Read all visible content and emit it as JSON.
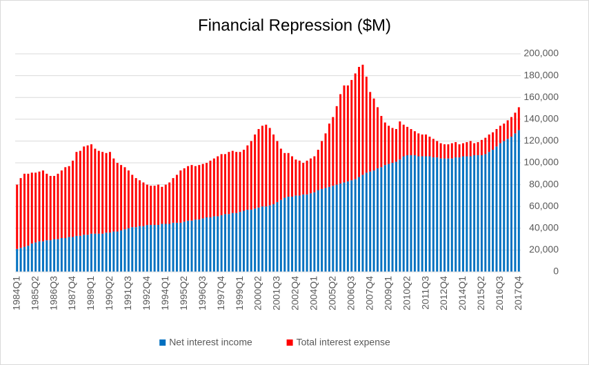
{
  "chart_data": {
    "type": "stacked_bar",
    "title": "Financial Repression ($M)",
    "categories": [
      "1984Q1",
      null,
      null,
      null,
      null,
      "1985Q2",
      null,
      null,
      null,
      null,
      "1986Q3",
      null,
      null,
      null,
      null,
      "1987Q4",
      null,
      null,
      null,
      null,
      "1989Q1",
      null,
      null,
      null,
      null,
      "1990Q2",
      null,
      null,
      null,
      null,
      "1991Q3",
      null,
      null,
      null,
      null,
      "1992Q4",
      null,
      null,
      null,
      null,
      "1994Q1",
      null,
      null,
      null,
      null,
      "1995Q2",
      null,
      null,
      null,
      null,
      "1996Q3",
      null,
      null,
      null,
      null,
      "1997Q4",
      null,
      null,
      null,
      null,
      "1999Q1",
      null,
      null,
      null,
      null,
      "2000Q2",
      null,
      null,
      null,
      null,
      "2001Q3",
      null,
      null,
      null,
      null,
      "2002Q4",
      null,
      null,
      null,
      null,
      "2004Q1",
      null,
      null,
      null,
      null,
      "2005Q2",
      null,
      null,
      null,
      null,
      "2006Q3",
      null,
      null,
      null,
      null,
      "2007Q4",
      null,
      null,
      null,
      null,
      "2009Q1",
      null,
      null,
      null,
      null,
      "2010Q2",
      null,
      null,
      null,
      null,
      "2011Q3",
      null,
      null,
      null,
      null,
      "2012Q4",
      null,
      null,
      null,
      null,
      "2014Q1",
      null,
      null,
      null,
      null,
      "2015Q2",
      null,
      null,
      null,
      null,
      "2016Q3",
      null,
      null,
      null,
      null,
      "2017Q4"
    ],
    "series": [
      {
        "name": "Net interest income",
        "color": "#0070c0",
        "values": [
          21000,
          22000,
          23000,
          24000,
          26000,
          27000,
          28000,
          28000,
          29000,
          29000,
          30000,
          30000,
          31000,
          31000,
          32000,
          32000,
          33000,
          33000,
          34000,
          34000,
          35000,
          35000,
          35000,
          35000,
          36000,
          36000,
          37000,
          37000,
          38000,
          39000,
          40000,
          41000,
          41000,
          42000,
          42000,
          43000,
          43000,
          43000,
          43000,
          44000,
          44000,
          44000,
          45000,
          45000,
          45000,
          46000,
          47000,
          47000,
          48000,
          48000,
          49000,
          50000,
          50000,
          51000,
          51000,
          52000,
          53000,
          53000,
          54000,
          54000,
          55000,
          56000,
          57000,
          57000,
          58000,
          59000,
          60000,
          60000,
          61000,
          62000,
          64000,
          66000,
          68000,
          69000,
          69000,
          70000,
          70000,
          71000,
          71000,
          72000,
          73000,
          75000,
          76000,
          77000,
          78000,
          79000,
          80000,
          81000,
          82000,
          83000,
          84000,
          85000,
          87000,
          89000,
          91000,
          92000,
          93000,
          95000,
          96000,
          98000,
          99000,
          100000,
          101000,
          103000,
          106000,
          107000,
          107000,
          107000,
          106000,
          106000,
          106000,
          106000,
          105000,
          105000,
          104000,
          104000,
          104000,
          104000,
          105000,
          105000,
          106000,
          106000,
          106000,
          107000,
          107000,
          107000,
          108000,
          110000,
          112000,
          115000,
          118000,
          120000,
          122000,
          124000,
          127000,
          130000
        ]
      },
      {
        "name": "Total interest expense",
        "color": "#ff0000",
        "values": [
          59000,
          64000,
          67000,
          66000,
          65000,
          64000,
          64000,
          65000,
          61000,
          59000,
          58000,
          60000,
          62000,
          65000,
          65000,
          70000,
          77000,
          78000,
          81000,
          82000,
          82000,
          78000,
          76000,
          75000,
          73000,
          74000,
          67000,
          63000,
          60000,
          57000,
          53000,
          48000,
          45000,
          42000,
          40000,
          37000,
          36000,
          36000,
          37000,
          34000,
          36000,
          38000,
          41000,
          44000,
          48000,
          49000,
          50000,
          51000,
          49000,
          50000,
          50000,
          50000,
          52000,
          53000,
          55000,
          56000,
          55000,
          57000,
          57000,
          56000,
          55000,
          56000,
          59000,
          63000,
          68000,
          72000,
          74000,
          75000,
          71000,
          64000,
          56000,
          47000,
          41000,
          40000,
          37000,
          33000,
          32000,
          29000,
          31000,
          32000,
          33000,
          37000,
          44000,
          50000,
          58000,
          63000,
          72000,
          82000,
          89000,
          88000,
          92000,
          97000,
          101000,
          101000,
          88000,
          73000,
          66000,
          56000,
          47000,
          39000,
          35000,
          32000,
          30000,
          35000,
          29000,
          26000,
          24000,
          22000,
          21000,
          20000,
          20000,
          18000,
          17000,
          15000,
          14000,
          13000,
          13000,
          14000,
          14000,
          12000,
          12000,
          13000,
          14000,
          11000,
          12000,
          14000,
          15000,
          16000,
          16000,
          16000,
          16000,
          16000,
          17000,
          18000,
          19000,
          21000
        ]
      }
    ],
    "ylim": [
      0,
      200000
    ],
    "yticks": [
      0,
      {
        "value": 20000,
        "label": "20,000"
      },
      {
        "value": 40000,
        "label": "40,000"
      },
      {
        "value": 60000,
        "label": "60,000"
      },
      {
        "value": 80000,
        "label": "80,000"
      },
      {
        "value": 100000,
        "label": "100,000"
      },
      {
        "value": 120000,
        "label": "120,000"
      },
      {
        "value": 140000,
        "label": "140,000"
      },
      {
        "value": 160000,
        "label": "160,000"
      },
      {
        "value": 180000,
        "label": "180,000"
      },
      {
        "value": 200000,
        "label": "200,000"
      }
    ],
    "grid": true,
    "y_axis_side": "right",
    "legend": "bottom"
  }
}
